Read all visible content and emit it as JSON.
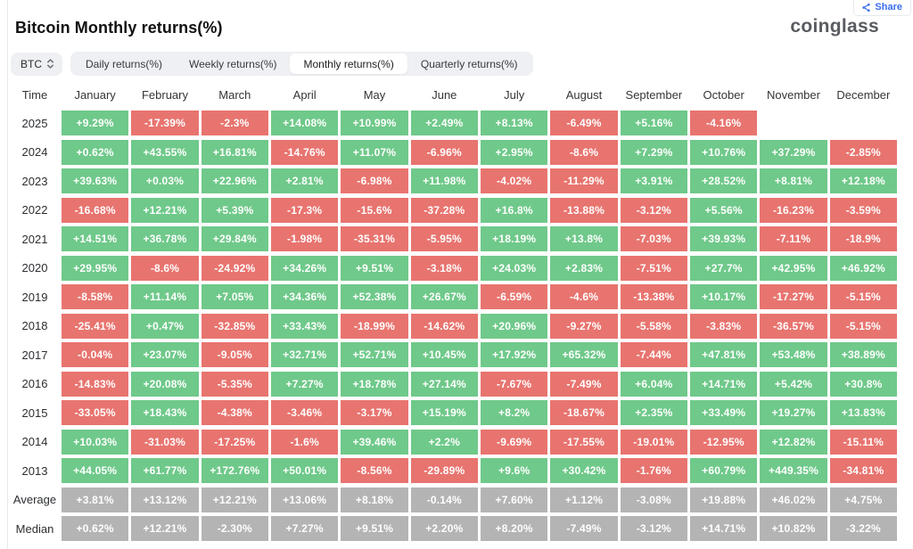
{
  "header": {
    "title": "Bitcoin Monthly returns(%)",
    "logo_text": "coinglass",
    "share_label": "Share"
  },
  "icons": {
    "share": "share-nodes-icon",
    "coin_select": "up-down-chevrons-icon"
  },
  "colors": {
    "positive_green": "#6fc98a",
    "negative_red": "#e8746f",
    "summary_gray": "#b4b4b4",
    "accent_blue": "#3b6cf0",
    "tab_bg": "#eef0f3"
  },
  "toolbar": {
    "symbol": "BTC",
    "tabs": [
      {
        "label": "Daily returns(%)",
        "active": false
      },
      {
        "label": "Weekly returns(%)",
        "active": false
      },
      {
        "label": "Monthly returns(%)",
        "active": true
      },
      {
        "label": "Quarterly returns(%)",
        "active": false
      }
    ]
  },
  "table": {
    "columns": [
      "Time",
      "January",
      "February",
      "March",
      "April",
      "May",
      "June",
      "July",
      "August",
      "September",
      "October",
      "November",
      "December"
    ],
    "rows": [
      {
        "label": "2025",
        "type": "year",
        "values": [
          "+9.29%",
          "-17.39%",
          "-2.3%",
          "+14.08%",
          "+10.99%",
          "+2.49%",
          "+8.13%",
          "-6.49%",
          "+5.16%",
          "-4.16%",
          null,
          null
        ]
      },
      {
        "label": "2024",
        "type": "year",
        "values": [
          "+0.62%",
          "+43.55%",
          "+16.81%",
          "-14.76%",
          "+11.07%",
          "-6.96%",
          "+2.95%",
          "-8.6%",
          "+7.29%",
          "+10.76%",
          "+37.29%",
          "-2.85%"
        ]
      },
      {
        "label": "2023",
        "type": "year",
        "values": [
          "+39.63%",
          "+0.03%",
          "+22.96%",
          "+2.81%",
          "-6.98%",
          "+11.98%",
          "-4.02%",
          "-11.29%",
          "+3.91%",
          "+28.52%",
          "+8.81%",
          "+12.18%"
        ]
      },
      {
        "label": "2022",
        "type": "year",
        "values": [
          "-16.68%",
          "+12.21%",
          "+5.39%",
          "-17.3%",
          "-15.6%",
          "-37.28%",
          "+16.8%",
          "-13.88%",
          "-3.12%",
          "+5.56%",
          "-16.23%",
          "-3.59%"
        ]
      },
      {
        "label": "2021",
        "type": "year",
        "values": [
          "+14.51%",
          "+36.78%",
          "+29.84%",
          "-1.98%",
          "-35.31%",
          "-5.95%",
          "+18.19%",
          "+13.8%",
          "-7.03%",
          "+39.93%",
          "-7.11%",
          "-18.9%"
        ]
      },
      {
        "label": "2020",
        "type": "year",
        "values": [
          "+29.95%",
          "-8.6%",
          "-24.92%",
          "+34.26%",
          "+9.51%",
          "-3.18%",
          "+24.03%",
          "+2.83%",
          "-7.51%",
          "+27.7%",
          "+42.95%",
          "+46.92%"
        ]
      },
      {
        "label": "2019",
        "type": "year",
        "values": [
          "-8.58%",
          "+11.14%",
          "+7.05%",
          "+34.36%",
          "+52.38%",
          "+26.67%",
          "-6.59%",
          "-4.6%",
          "-13.38%",
          "+10.17%",
          "-17.27%",
          "-5.15%"
        ]
      },
      {
        "label": "2018",
        "type": "year",
        "values": [
          "-25.41%",
          "+0.47%",
          "-32.85%",
          "+33.43%",
          "-18.99%",
          "-14.62%",
          "+20.96%",
          "-9.27%",
          "-5.58%",
          "-3.83%",
          "-36.57%",
          "-5.15%"
        ]
      },
      {
        "label": "2017",
        "type": "year",
        "values": [
          "-0.04%",
          "+23.07%",
          "-9.05%",
          "+32.71%",
          "+52.71%",
          "+10.45%",
          "+17.92%",
          "+65.32%",
          "-7.44%",
          "+47.81%",
          "+53.48%",
          "+38.89%"
        ]
      },
      {
        "label": "2016",
        "type": "year",
        "values": [
          "-14.83%",
          "+20.08%",
          "-5.35%",
          "+7.27%",
          "+18.78%",
          "+27.14%",
          "-7.67%",
          "-7.49%",
          "+6.04%",
          "+14.71%",
          "+5.42%",
          "+30.8%"
        ]
      },
      {
        "label": "2015",
        "type": "year",
        "values": [
          "-33.05%",
          "+18.43%",
          "-4.38%",
          "-3.46%",
          "-3.17%",
          "+15.19%",
          "+8.2%",
          "-18.67%",
          "+2.35%",
          "+33.49%",
          "+19.27%",
          "+13.83%"
        ]
      },
      {
        "label": "2014",
        "type": "year",
        "values": [
          "+10.03%",
          "-31.03%",
          "-17.25%",
          "-1.6%",
          "+39.46%",
          "+2.2%",
          "-9.69%",
          "-17.55%",
          "-19.01%",
          "-12.95%",
          "+12.82%",
          "-15.11%"
        ]
      },
      {
        "label": "2013",
        "type": "year",
        "values": [
          "+44.05%",
          "+61.77%",
          "+172.76%",
          "+50.01%",
          "-8.56%",
          "-29.89%",
          "+9.6%",
          "+30.42%",
          "-1.76%",
          "+60.79%",
          "+449.35%",
          "-34.81%"
        ]
      },
      {
        "label": "Average",
        "type": "summary",
        "values": [
          "+3.81%",
          "+13.12%",
          "+12.21%",
          "+13.06%",
          "+8.18%",
          "-0.14%",
          "+7.60%",
          "+1.12%",
          "-3.08%",
          "+19.88%",
          "+46.02%",
          "+4.75%"
        ]
      },
      {
        "label": "Median",
        "type": "summary",
        "values": [
          "+0.62%",
          "+12.21%",
          "-2.30%",
          "+7.27%",
          "+9.51%",
          "+2.20%",
          "+8.20%",
          "-7.49%",
          "-3.12%",
          "+14.71%",
          "+10.82%",
          "-3.22%"
        ]
      }
    ]
  }
}
